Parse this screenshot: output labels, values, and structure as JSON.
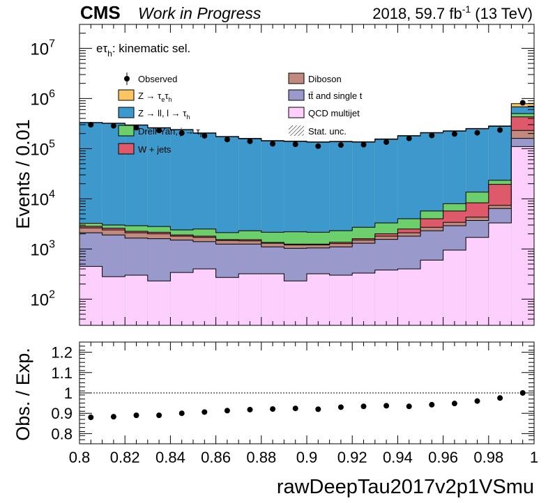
{
  "header": {
    "experiment": "CMS",
    "status": "Work in Progress",
    "lumi_main": "2018, 59.7 fb",
    "lumi_sup": "-1",
    "lumi_tail": " (13 TeV)"
  },
  "category": {
    "main": "eτ",
    "sub": "h",
    "tail": ": kinematic sel."
  },
  "colors": {
    "qcd": "#fccffc",
    "ttbar": "#9999cc",
    "diboson": "#c08a7e",
    "wjets": "#de5a6a",
    "dy_jet_fake": "#6ccf6c",
    "z_ll": "#3d99cc",
    "z_tautau": "#fcc560"
  },
  "legend": [
    {
      "key": "observed",
      "type": "marker",
      "main": "Observed"
    },
    {
      "key": "z_tautau",
      "type": "box",
      "main": "Z → τ",
      "sub": "e",
      "main2": "τ",
      "sub2": "h"
    },
    {
      "key": "z_ll",
      "type": "box",
      "main": "Z → ll, l → τ",
      "sub": "h"
    },
    {
      "key": "dy_jet_fake",
      "type": "box",
      "main": "Drell-Yan, j → τ",
      "sub": "h"
    },
    {
      "key": "wjets",
      "type": "box",
      "main": "W + jets"
    },
    {
      "key": "diboson",
      "type": "box",
      "main": "Diboson"
    },
    {
      "key": "ttbar",
      "type": "box",
      "main": "tt̄ and single t"
    },
    {
      "key": "qcd",
      "type": "box",
      "main": "QCD multijet"
    },
    {
      "key": "stat",
      "type": "hatch",
      "main": "Stat. unc."
    }
  ],
  "chart_data": [
    {
      "type": "area",
      "subtype": "stacked histogram",
      "ylabel": "Events / 0.01",
      "yscale": "log",
      "ylim": [
        30,
        30000000
      ],
      "xlim": [
        0.8,
        1.0
      ],
      "bin_edges": [
        0.8,
        0.81,
        0.82,
        0.83,
        0.84,
        0.85,
        0.86,
        0.87,
        0.88,
        0.89,
        0.9,
        0.91,
        0.92,
        0.93,
        0.94,
        0.95,
        0.96,
        0.97,
        0.98,
        0.99,
        1.0
      ],
      "y_tick_labels": [
        {
          "value": 100,
          "base": "10",
          "exp": "2"
        },
        {
          "value": 1000,
          "base": "10",
          "exp": "3"
        },
        {
          "value": 10000,
          "base": "10",
          "exp": "4"
        },
        {
          "value": 100000,
          "base": "10",
          "exp": "5"
        },
        {
          "value": 1000000,
          "base": "10",
          "exp": "6"
        },
        {
          "value": 10000000,
          "base": "10",
          "exp": "7"
        }
      ],
      "stack_order": [
        "qcd",
        "ttbar",
        "diboson",
        "wjets",
        "dy_jet_fake",
        "z_ll",
        "z_tautau"
      ],
      "series": [
        {
          "name": "QCD multijet",
          "key": "qcd",
          "values": [
            450,
            280,
            300,
            230,
            340,
            400,
            270,
            320,
            320,
            230,
            320,
            300,
            330,
            380,
            400,
            600,
            950,
            1700,
            3300,
            110000
          ]
        },
        {
          "name": "tt̄ and single t",
          "key": "ttbar",
          "values": [
            1650,
            1620,
            1350,
            1370,
            1160,
            1000,
            980,
            930,
            780,
            800,
            730,
            800,
            970,
            1170,
            1400,
            1700,
            1950,
            2000,
            3100,
            50000
          ]
        },
        {
          "name": "Diboson",
          "key": "diboson",
          "values": [
            530,
            500,
            450,
            400,
            300,
            300,
            220,
            200,
            200,
            170,
            150,
            180,
            200,
            250,
            300,
            400,
            500,
            600,
            1000,
            70000
          ]
        },
        {
          "name": "W + jets",
          "key": "wjets",
          "values": [
            200,
            200,
            150,
            150,
            100,
            100,
            70,
            80,
            50,
            50,
            50,
            80,
            100,
            200,
            400,
            1300,
            2300,
            4000,
            12000,
            200000
          ]
        },
        {
          "name": "Drell-Yan, j → τh",
          "key": "dy_jet_fake",
          "values": [
            420,
            400,
            650,
            650,
            500,
            700,
            580,
            770,
            800,
            950,
            900,
            950,
            1100,
            1300,
            1500,
            1700,
            2300,
            5300,
            4000,
            70000
          ]
        },
        {
          "name": "Z → ll, l → τh",
          "key": "z_ll",
          "values": [
            325000,
            315000,
            290000,
            255000,
            235000,
            200000,
            170000,
            155000,
            140000,
            137000,
            132000,
            135000,
            132000,
            150000,
            175000,
            200000,
            215000,
            235000,
            255000,
            180000
          ]
        },
        {
          "name": "Z → τeτh",
          "key": "z_tautau",
          "values": [
            5000,
            5000,
            4500,
            4000,
            3500,
            3500,
            3000,
            3000,
            2500,
            2500,
            2500,
            2500,
            2500,
            3000,
            3000,
            3500,
            4000,
            4000,
            5000,
            110000
          ]
        }
      ],
      "observed": {
        "name": "Observed",
        "values": [
          300000,
          285000,
          262000,
          230000,
          205000,
          180000,
          152000,
          140000,
          125000,
          122000,
          112000,
          118000,
          120000,
          135000,
          160000,
          183000,
          196000,
          207000,
          235000,
          820000
        ]
      }
    },
    {
      "type": "scatter",
      "xlabel": "rawDeepTau2017v2p1VSmu",
      "ylabel": "Obs. / Exp.",
      "xlim": [
        0.8,
        1.0
      ],
      "ylim": [
        0.75,
        1.25
      ],
      "reference_line": 1.0,
      "x": [
        0.805,
        0.815,
        0.825,
        0.835,
        0.845,
        0.855,
        0.865,
        0.875,
        0.885,
        0.895,
        0.905,
        0.915,
        0.925,
        0.935,
        0.945,
        0.955,
        0.965,
        0.975,
        0.985,
        0.995
      ],
      "y": [
        0.88,
        0.883,
        0.89,
        0.89,
        0.9,
        0.906,
        0.913,
        0.918,
        0.921,
        0.924,
        0.92,
        0.93,
        0.934,
        0.937,
        0.934,
        0.942,
        0.948,
        0.96,
        0.975,
        1.0
      ],
      "x_tick_labels": [
        "0.8",
        "0.82",
        "0.84",
        "0.86",
        "0.88",
        "0.9",
        "0.92",
        "0.94",
        "0.96",
        "0.98",
        "1"
      ],
      "y_tick_labels": [
        "0.8",
        "0.9",
        "1",
        "1.1",
        "1.2"
      ]
    }
  ]
}
